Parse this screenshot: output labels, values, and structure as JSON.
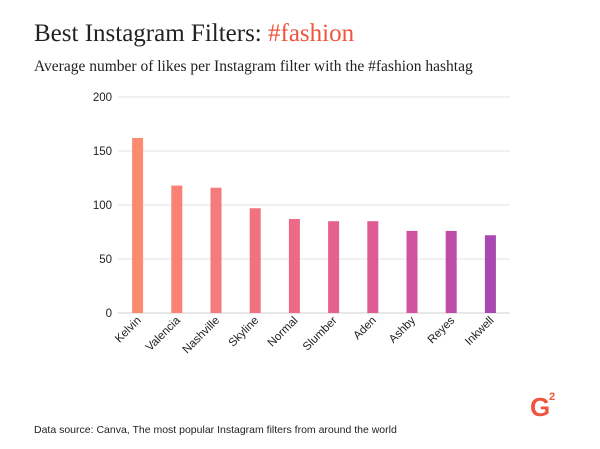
{
  "title": {
    "main": "Best Instagram Filters: ",
    "hashtag": "#fashion"
  },
  "subtitle": "Average number of likes per Instagram filter with the #fashion hashtag",
  "source": "Data source: Canva, The most popular Instagram filters from around the world",
  "logo": {
    "text": "G",
    "superscript": "2",
    "color": "#f0543c"
  },
  "chart_data": {
    "type": "bar",
    "title": "Best Instagram Filters: #fashion",
    "subtitle": "Average number of likes per Instagram filter with the #fashion hashtag",
    "xlabel": "",
    "ylabel": "",
    "categories": [
      "Kelvin",
      "Valencia",
      "Nashville",
      "Skyline",
      "Normal",
      "Slumber",
      "Aden",
      "Ashby",
      "Reyes",
      "Inkwell"
    ],
    "values": [
      162,
      118,
      116,
      97,
      87,
      85,
      85,
      76,
      76,
      72
    ],
    "ylim": [
      0,
      200
    ],
    "yticks": [
      0,
      50,
      100,
      150,
      200
    ],
    "grid": true,
    "legend": "none",
    "bar_colors": [
      "#fa8b70",
      "#f88276",
      "#f57a7b",
      "#f17181",
      "#ed6986",
      "#e6628c",
      "#de5b93",
      "#cf539e",
      "#bc4ca8",
      "#a848b0"
    ],
    "colors": {
      "grid": "#e3e3e3",
      "axis": "#cfcfcf",
      "text": "#222222"
    }
  }
}
